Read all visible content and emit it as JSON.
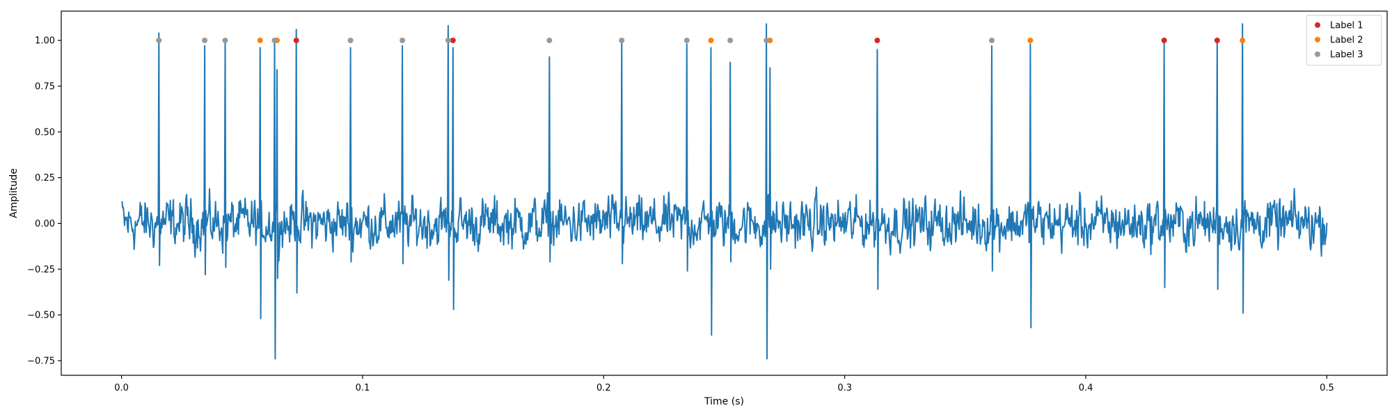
{
  "chart_data": {
    "type": "line",
    "xlabel": "Time (s)",
    "ylabel": "Amplitude",
    "xlim": [
      -0.025,
      0.525
    ],
    "ylim": [
      -0.83,
      1.16
    ],
    "xticks": [
      0.0,
      0.1,
      0.2,
      0.3,
      0.4,
      0.5
    ],
    "xtick_labels": [
      "0.0",
      "0.1",
      "0.2",
      "0.3",
      "0.4",
      "0.5"
    ],
    "yticks": [
      -0.75,
      -0.5,
      -0.25,
      0.0,
      0.25,
      0.5,
      0.75,
      1.0
    ],
    "ytick_labels": [
      "−0.75",
      "−0.50",
      "−0.25",
      "0.00",
      "0.25",
      "0.50",
      "0.75",
      "1.00"
    ],
    "grid": false,
    "legend_position": "top-right",
    "signal": {
      "color": "#1f77b4",
      "duration": 0.5,
      "noise_amplitude": 0.06,
      "spikes": [
        {
          "t": 0.0155,
          "peak": 1.04,
          "trough": -0.23
        },
        {
          "t": 0.0345,
          "peak": 0.97,
          "trough": -0.28
        },
        {
          "t": 0.043,
          "peak": 0.99,
          "trough": -0.24
        },
        {
          "t": 0.0575,
          "peak": 0.96,
          "trough": -0.52
        },
        {
          "t": 0.0635,
          "peak": 1.0,
          "trough": -0.74
        },
        {
          "t": 0.0645,
          "peak": 0.84,
          "trough": -0.3
        },
        {
          "t": 0.0725,
          "peak": 1.06,
          "trough": -0.38
        },
        {
          "t": 0.095,
          "peak": 0.96,
          "trough": -0.21
        },
        {
          "t": 0.1165,
          "peak": 0.97,
          "trough": -0.22
        },
        {
          "t": 0.1355,
          "peak": 1.08,
          "trough": -0.31
        },
        {
          "t": 0.1375,
          "peak": 0.96,
          "trough": -0.47
        },
        {
          "t": 0.1775,
          "peak": 0.91,
          "trough": -0.21
        },
        {
          "t": 0.2075,
          "peak": 1.0,
          "trough": -0.22
        },
        {
          "t": 0.2345,
          "peak": 0.98,
          "trough": -0.26
        },
        {
          "t": 0.2445,
          "peak": 0.96,
          "trough": -0.61
        },
        {
          "t": 0.2525,
          "peak": 0.88,
          "trough": -0.21
        },
        {
          "t": 0.2675,
          "peak": 1.09,
          "trough": -0.74
        },
        {
          "t": 0.269,
          "peak": 0.85,
          "trough": -0.25
        },
        {
          "t": 0.3135,
          "peak": 0.95,
          "trough": -0.36
        },
        {
          "t": 0.361,
          "peak": 0.97,
          "trough": -0.26
        },
        {
          "t": 0.377,
          "peak": 0.98,
          "trough": -0.57
        },
        {
          "t": 0.4325,
          "peak": 0.99,
          "trough": -0.35
        },
        {
          "t": 0.4545,
          "peak": 1.01,
          "trough": -0.36
        },
        {
          "t": 0.465,
          "peak": 1.09,
          "trough": -0.49
        }
      ]
    },
    "series": [
      {
        "name": "Label 1",
        "color": "#d62728",
        "x": [
          0.0725,
          0.1375,
          0.3135,
          0.4325,
          0.4545
        ],
        "y": [
          1.0,
          1.0,
          1.0,
          1.0,
          1.0
        ]
      },
      {
        "name": "Label 2",
        "color": "#ff7f0e",
        "x": [
          0.0575,
          0.0645,
          0.2445,
          0.269,
          0.377,
          0.465
        ],
        "y": [
          1.0,
          1.0,
          1.0,
          1.0,
          1.0,
          1.0
        ]
      },
      {
        "name": "Label 3",
        "color": "#999999",
        "x": [
          0.0155,
          0.0345,
          0.043,
          0.0635,
          0.095,
          0.1165,
          0.1355,
          0.1775,
          0.2075,
          0.2345,
          0.2525,
          0.2675,
          0.361
        ],
        "y": [
          1.0,
          1.0,
          1.0,
          1.0,
          1.0,
          1.0,
          1.0,
          1.0,
          1.0,
          1.0,
          1.0,
          1.0,
          1.0
        ]
      }
    ]
  }
}
